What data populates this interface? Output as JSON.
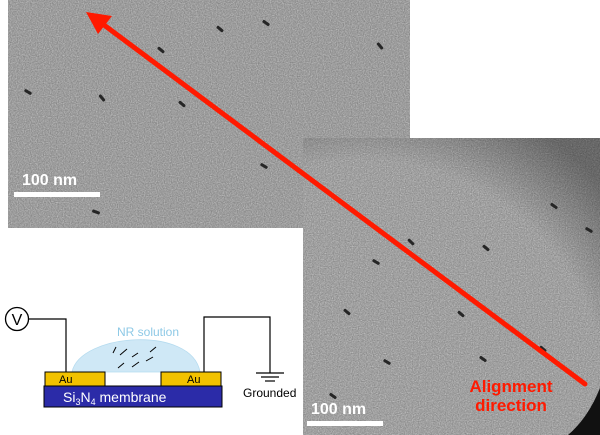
{
  "micrographs": {
    "top": {
      "scale_label": "100 nm"
    },
    "bottom": {
      "scale_label": "100 nm"
    }
  },
  "annotation": {
    "alignment_line1": "Alignment",
    "alignment_line2": "direction",
    "arrow_color": "#ff1a00"
  },
  "schematic": {
    "voltage_symbol": "V",
    "solution_label": "NR solution",
    "electrode_left": "Au",
    "electrode_right": "Au",
    "membrane_prefix": "Si",
    "membrane_sub1": "3",
    "membrane_mid": "N",
    "membrane_sub2": "4",
    "membrane_suffix": " membrane",
    "ground_label": "Grounded",
    "colors": {
      "membrane": "#2b2ba8",
      "electrode": "#f2c200",
      "solution": "#cfe8f6",
      "solution_text": "#8ec9e6"
    }
  }
}
